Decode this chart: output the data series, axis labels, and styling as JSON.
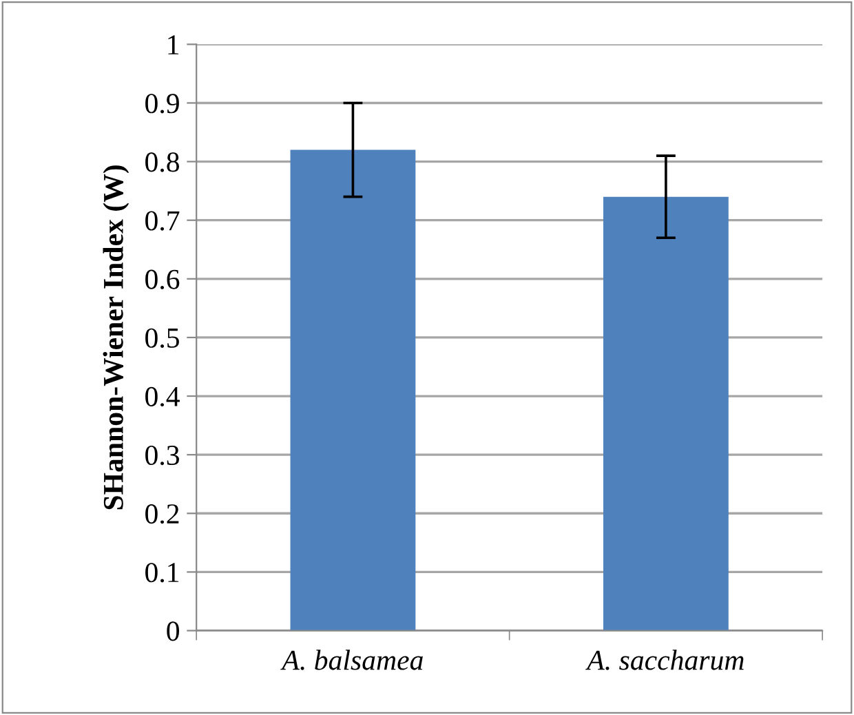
{
  "chart_data": {
    "type": "bar",
    "ylabel": "SHannon-Wiener Index (W)",
    "categories": [
      "A. balsamea",
      "A. saccharum"
    ],
    "values": [
      0.82,
      0.74
    ],
    "errors": [
      [
        0.74,
        0.9
      ],
      [
        0.67,
        0.81
      ]
    ],
    "color": "#4f81bd",
    "ylim": [
      0,
      1
    ],
    "yticks": [
      0,
      0.1,
      0.2,
      0.3,
      0.4,
      0.5,
      0.6,
      0.7,
      0.8,
      0.9,
      1
    ],
    "grid": "y"
  }
}
